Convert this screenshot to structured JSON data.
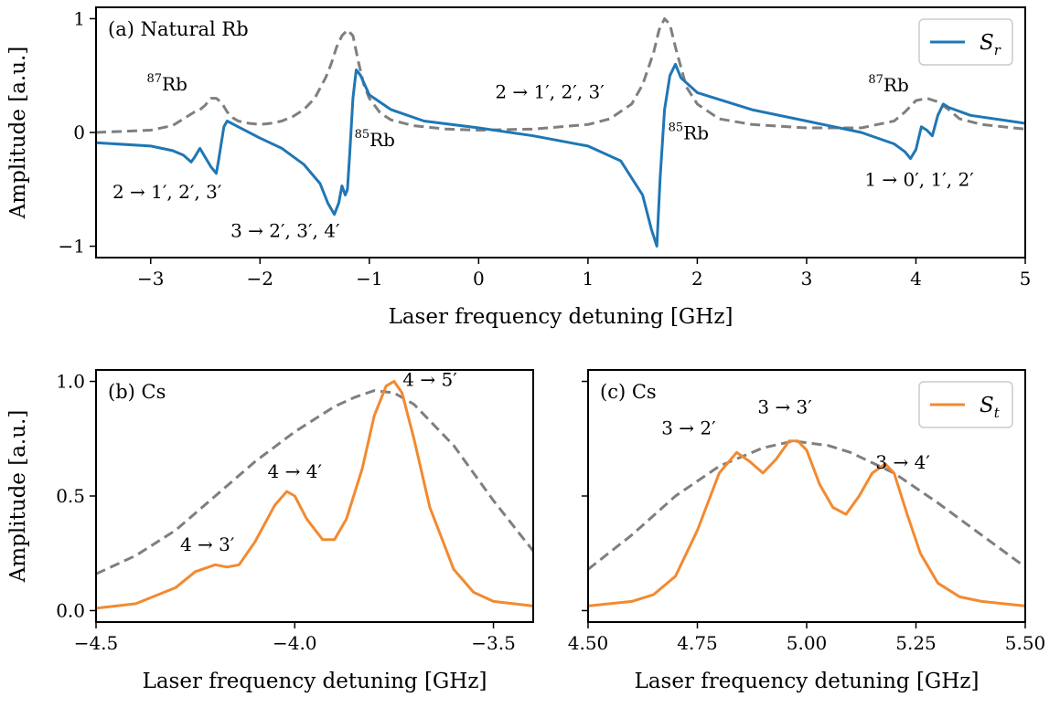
{
  "colors": {
    "blue": "#1f77b4",
    "orange": "#f28a30",
    "dashed": "#7f7f7f"
  },
  "chart_data": [
    {
      "type": "line",
      "panel_label": "(a) Natural Rb",
      "xlabel": "Laser frequency detuning [GHz]",
      "ylabel": "Amplitude [a.u.]",
      "xlim": [
        -3.5,
        5
      ],
      "ylim": [
        -1.1,
        1.1
      ],
      "xticks": [
        -3,
        -2,
        -1,
        0,
        1,
        2,
        3,
        4,
        5
      ],
      "xtick_labels": [
        "−3",
        "−2",
        "−1",
        "0",
        "1",
        "2",
        "3",
        "4",
        "5"
      ],
      "yticks": [
        -1,
        0,
        1
      ],
      "ytick_labels": [
        "−1",
        "0",
        "1"
      ],
      "grid": false,
      "legend": {
        "placement": "top-right",
        "entries": [
          "S_r"
        ],
        "entry_label": "S",
        "entry_sub": "r"
      },
      "series": [
        {
          "name": "S_r",
          "style": "solid",
          "color": "blue",
          "x": [
            -3.5,
            -3.0,
            -2.8,
            -2.7,
            -2.63,
            -2.6,
            -2.55,
            -2.5,
            -2.45,
            -2.4,
            -2.38,
            -2.33,
            -2.3,
            -2.2,
            -2.0,
            -1.8,
            -1.6,
            -1.45,
            -1.38,
            -1.32,
            -1.28,
            -1.25,
            -1.22,
            -1.2,
            -1.18,
            -1.15,
            -1.12,
            -1.08,
            -1.0,
            -0.8,
            -0.5,
            0.0,
            0.5,
            1.0,
            1.3,
            1.5,
            1.58,
            1.63,
            1.66,
            1.7,
            1.75,
            1.8,
            1.85,
            2.0,
            2.5,
            3.0,
            3.5,
            3.8,
            3.9,
            3.95,
            4.0,
            4.05,
            4.1,
            4.15,
            4.2,
            4.25,
            4.3,
            4.5,
            5.0
          ],
          "y": [
            -0.09,
            -0.12,
            -0.16,
            -0.2,
            -0.26,
            -0.22,
            -0.14,
            -0.22,
            -0.3,
            -0.36,
            -0.25,
            0.05,
            0.1,
            0.05,
            -0.05,
            -0.14,
            -0.28,
            -0.45,
            -0.62,
            -0.72,
            -0.62,
            -0.47,
            -0.55,
            -0.5,
            -0.2,
            0.3,
            0.55,
            0.5,
            0.33,
            0.2,
            0.1,
            0.04,
            -0.03,
            -0.12,
            -0.25,
            -0.55,
            -0.85,
            -1.0,
            -0.4,
            0.2,
            0.5,
            0.6,
            0.48,
            0.35,
            0.2,
            0.1,
            0.0,
            -0.1,
            -0.17,
            -0.23,
            -0.15,
            0.05,
            0.02,
            -0.03,
            0.15,
            0.25,
            0.22,
            0.15,
            0.08
          ]
        },
        {
          "style": "dashed",
          "color": "dashed",
          "x": [
            -3.5,
            -3.0,
            -2.8,
            -2.7,
            -2.6,
            -2.55,
            -2.5,
            -2.45,
            -2.4,
            -2.35,
            -2.3,
            -2.25,
            -2.2,
            -2.1,
            -2.0,
            -1.9,
            -1.8,
            -1.7,
            -1.6,
            -1.5,
            -1.4,
            -1.35,
            -1.3,
            -1.25,
            -1.2,
            -1.15,
            -1.1,
            -1.05,
            -1.0,
            -0.9,
            -0.8,
            -0.6,
            -0.3,
            0.0,
            0.5,
            1.0,
            1.2,
            1.4,
            1.5,
            1.6,
            1.65,
            1.7,
            1.75,
            1.8,
            1.9,
            2.0,
            2.2,
            2.5,
            3.0,
            3.5,
            3.8,
            3.9,
            4.0,
            4.1,
            4.2,
            4.3,
            4.4,
            4.6,
            5.0
          ],
          "y": [
            0.0,
            0.02,
            0.06,
            0.12,
            0.18,
            0.2,
            0.24,
            0.3,
            0.3,
            0.26,
            0.18,
            0.13,
            0.1,
            0.08,
            0.07,
            0.08,
            0.1,
            0.14,
            0.2,
            0.3,
            0.48,
            0.6,
            0.75,
            0.85,
            0.9,
            0.85,
            0.62,
            0.42,
            0.3,
            0.17,
            0.11,
            0.06,
            0.03,
            0.02,
            0.03,
            0.07,
            0.12,
            0.25,
            0.42,
            0.7,
            0.9,
            1.0,
            0.95,
            0.75,
            0.4,
            0.25,
            0.12,
            0.07,
            0.04,
            0.04,
            0.1,
            0.18,
            0.28,
            0.3,
            0.27,
            0.2,
            0.12,
            0.07,
            0.03
          ]
        }
      ],
      "annotations": [
        {
          "sup": "87",
          "text": "Rb",
          "x": -2.85,
          "y": 0.37
        },
        {
          "text": "2 → 1′, 2′, 3′",
          "x": -2.85,
          "y": -0.58
        },
        {
          "text": "3 → 2′, 3′, 4′",
          "x": -1.77,
          "y": -0.92
        },
        {
          "sup": "85",
          "text": "Rb",
          "x": -0.95,
          "y": -0.12
        },
        {
          "text": "2 → 1′, 2′, 3′",
          "x": 0.65,
          "y": 0.3
        },
        {
          "sup": "85",
          "text": "Rb",
          "x": 1.92,
          "y": -0.06
        },
        {
          "sup": "87",
          "text": "Rb",
          "x": 3.75,
          "y": 0.36
        },
        {
          "text": "1 → 0′, 1′, 2′",
          "x": 4.03,
          "y": -0.47
        }
      ]
    },
    {
      "type": "line",
      "panel_label": "(b) Cs",
      "xlabel": "Laser frequency detuning [GHz]",
      "ylabel": "Amplitude [a.u.]",
      "xlim": [
        -4.5,
        -3.4
      ],
      "ylim": [
        -0.05,
        1.05
      ],
      "xticks": [
        -4.5,
        -4.0,
        -3.5
      ],
      "xtick_labels": [
        "−4.5",
        "−4.0",
        "−3.5"
      ],
      "yticks": [
        0.0,
        0.5,
        1.0
      ],
      "ytick_labels": [
        "0.0",
        "0.5",
        "1.0"
      ],
      "grid": false,
      "series": [
        {
          "name": "S_t",
          "style": "solid",
          "color": "orange",
          "x": [
            -4.5,
            -4.4,
            -4.3,
            -4.25,
            -4.2,
            -4.17,
            -4.14,
            -4.1,
            -4.05,
            -4.02,
            -4.0,
            -3.97,
            -3.93,
            -3.9,
            -3.87,
            -3.83,
            -3.8,
            -3.77,
            -3.75,
            -3.73,
            -3.7,
            -3.66,
            -3.6,
            -3.55,
            -3.5,
            -3.4
          ],
          "y": [
            0.01,
            0.03,
            0.1,
            0.17,
            0.2,
            0.19,
            0.2,
            0.3,
            0.46,
            0.52,
            0.5,
            0.4,
            0.31,
            0.31,
            0.4,
            0.62,
            0.85,
            0.98,
            1.0,
            0.95,
            0.75,
            0.45,
            0.18,
            0.08,
            0.04,
            0.02
          ]
        },
        {
          "style": "dashed",
          "color": "dashed",
          "x": [
            -4.5,
            -4.4,
            -4.3,
            -4.2,
            -4.1,
            -4.0,
            -3.9,
            -3.85,
            -3.8,
            -3.75,
            -3.7,
            -3.6,
            -3.5,
            -3.4
          ],
          "y": [
            0.16,
            0.24,
            0.35,
            0.5,
            0.65,
            0.78,
            0.89,
            0.93,
            0.96,
            0.95,
            0.9,
            0.72,
            0.48,
            0.26
          ]
        }
      ],
      "annotations": [
        {
          "text": "4 → 3′",
          "x": -4.22,
          "y": 0.26
        },
        {
          "text": "4 → 4′",
          "x": -4.0,
          "y": 0.58
        },
        {
          "text": "4 → 5′",
          "x": -3.66,
          "y": 0.98
        }
      ]
    },
    {
      "type": "line",
      "panel_label": "(c) Cs",
      "xlabel": "Laser frequency detuning [GHz]",
      "xlim": [
        4.5,
        5.5
      ],
      "ylim": [
        -0.05,
        1.05
      ],
      "xticks": [
        4.5,
        4.75,
        5.0,
        5.25,
        5.5
      ],
      "xtick_labels": [
        "4.50",
        "4.75",
        "5.00",
        "5.25",
        "5.50"
      ],
      "yticks": [
        0.0,
        0.5,
        1.0
      ],
      "grid": false,
      "legend": {
        "placement": "top-right",
        "entries": [
          "S_t"
        ],
        "entry_label": "S",
        "entry_sub": "t"
      },
      "series": [
        {
          "name": "S_t",
          "style": "solid",
          "color": "orange",
          "x": [
            4.5,
            4.6,
            4.65,
            4.7,
            4.75,
            4.8,
            4.84,
            4.87,
            4.9,
            4.93,
            4.96,
            4.98,
            5.0,
            5.03,
            5.06,
            5.09,
            5.12,
            5.15,
            5.18,
            5.2,
            5.23,
            5.26,
            5.3,
            5.35,
            5.4,
            5.5
          ],
          "y": [
            0.02,
            0.04,
            0.07,
            0.15,
            0.35,
            0.6,
            0.69,
            0.65,
            0.6,
            0.66,
            0.74,
            0.74,
            0.7,
            0.55,
            0.45,
            0.42,
            0.5,
            0.6,
            0.64,
            0.6,
            0.42,
            0.25,
            0.12,
            0.06,
            0.04,
            0.02
          ]
        },
        {
          "style": "dashed",
          "color": "dashed",
          "x": [
            4.5,
            4.6,
            4.7,
            4.8,
            4.9,
            4.97,
            5.05,
            5.1,
            5.2,
            5.3,
            5.4,
            5.5
          ],
          "y": [
            0.18,
            0.33,
            0.5,
            0.63,
            0.71,
            0.74,
            0.72,
            0.69,
            0.6,
            0.47,
            0.33,
            0.19
          ]
        }
      ],
      "annotations": [
        {
          "text": "3 → 2′",
          "x": 4.73,
          "y": 0.77
        },
        {
          "text": "3 → 3′",
          "x": 4.95,
          "y": 0.86
        },
        {
          "text": "3 → 4′",
          "x": 5.22,
          "y": 0.62
        }
      ]
    }
  ]
}
